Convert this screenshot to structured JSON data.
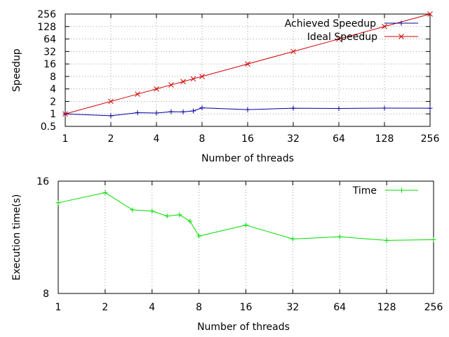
{
  "chart_data": [
    {
      "type": "line",
      "xlabel": "Number of threads",
      "ylabel": "Speedup",
      "xscale": "log2",
      "yscale": "log2",
      "xlim": [
        1,
        256
      ],
      "ylim": [
        0.5,
        256
      ],
      "x_ticks": [
        "1",
        "2",
        "4",
        "8",
        "16",
        "32",
        "64",
        "128",
        "256"
      ],
      "y_ticks": [
        "0.5",
        "1",
        "2",
        "4",
        "8",
        "16",
        "32",
        "64",
        "128",
        "256"
      ],
      "grid": true,
      "legend_position": "top-right",
      "series": [
        {
          "name": "Achieved Speedup",
          "color": "#0000a0",
          "marker": "+",
          "x": [
            1,
            2,
            3,
            4,
            5,
            6,
            7,
            8,
            16,
            32,
            64,
            128,
            256
          ],
          "values": [
            1.0,
            0.9,
            1.07,
            1.05,
            1.13,
            1.12,
            1.18,
            1.4,
            1.27,
            1.37,
            1.35,
            1.38,
            1.37
          ]
        },
        {
          "name": "Ideal Speedup",
          "color": "#d00000",
          "marker": "x",
          "x": [
            1,
            2,
            3,
            4,
            5,
            6,
            7,
            8,
            16,
            32,
            64,
            128,
            256
          ],
          "values": [
            1,
            2,
            3,
            4,
            5,
            6,
            7,
            8,
            16,
            32,
            64,
            128,
            256
          ]
        }
      ]
    },
    {
      "type": "line",
      "xlabel": "Number of threads",
      "ylabel": "Execution time(s)",
      "xscale": "log2",
      "yscale": "log2",
      "xlim": [
        1,
        256
      ],
      "ylim": [
        8,
        16
      ],
      "x_ticks": [
        "1",
        "2",
        "4",
        "8",
        "16",
        "32",
        "64",
        "128",
        "256"
      ],
      "y_ticks": [
        "8",
        "16"
      ],
      "grid": true,
      "legend_position": "top-right",
      "series": [
        {
          "name": "Time",
          "color": "#00dd00",
          "marker": "+",
          "x": [
            1,
            2,
            3,
            4,
            5,
            6,
            7,
            8,
            16,
            32,
            64,
            128,
            256
          ],
          "values": [
            14.0,
            14.9,
            13.4,
            13.3,
            12.9,
            13.0,
            12.5,
            11.4,
            12.2,
            11.2,
            11.35,
            11.1,
            11.15
          ]
        }
      ]
    }
  ]
}
